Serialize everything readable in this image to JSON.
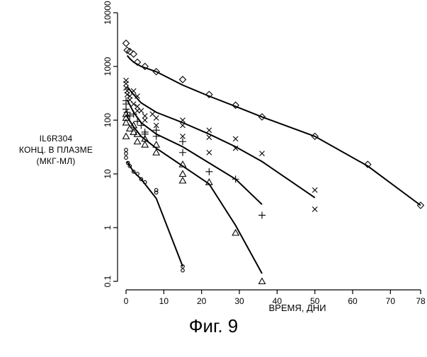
{
  "caption": "Фиг. 9",
  "chart_data": {
    "type": "scatter",
    "title": "",
    "ylabel_lines": [
      "IL6R304",
      "КОНЦ. В ПЛАЗМЕ",
      "(МКГ-МЛ)"
    ],
    "xlabel": "ВРЕМЯ, ДНИ",
    "yscale": "log",
    "ylim": [
      0.1,
      10000
    ],
    "xlim": [
      0,
      78
    ],
    "xticks": [
      0,
      10,
      20,
      30,
      40,
      50,
      60,
      70,
      78
    ],
    "yticks": [
      0.1,
      1,
      10,
      100,
      1000,
      10000
    ],
    "ytick_labels": [
      "0.1",
      "1",
      "10",
      "100",
      "1000",
      "10000"
    ],
    "grid": false,
    "legend": "none",
    "series": [
      {
        "marker": "diamond",
        "points": [
          [
            0,
            2700
          ],
          [
            0.3,
            2000
          ],
          [
            1,
            1900
          ],
          [
            2,
            1700
          ],
          [
            3,
            1200
          ],
          [
            5,
            1000
          ],
          [
            8,
            800
          ],
          [
            15,
            570
          ],
          [
            22,
            300
          ],
          [
            29,
            190
          ],
          [
            36,
            115
          ],
          [
            50,
            50
          ],
          [
            64,
            15
          ],
          [
            78,
            2.6
          ]
        ],
        "fit": [
          [
            0.3,
            1600
          ],
          [
            1,
            1400
          ],
          [
            2,
            1200
          ],
          [
            4,
            1000
          ],
          [
            8,
            800
          ],
          [
            15,
            450
          ],
          [
            22,
            280
          ],
          [
            29,
            180
          ],
          [
            36,
            115
          ],
          [
            50,
            50
          ],
          [
            64,
            14
          ],
          [
            78,
            2.6
          ]
        ]
      },
      {
        "marker": "x",
        "points": [
          [
            0,
            550
          ],
          [
            0,
            480
          ],
          [
            0,
            400
          ],
          [
            0.3,
            350
          ],
          [
            0.3,
            300
          ],
          [
            1,
            280
          ],
          [
            1,
            240
          ],
          [
            2,
            350
          ],
          [
            2,
            200
          ],
          [
            3,
            280
          ],
          [
            3,
            180
          ],
          [
            3,
            150
          ],
          [
            4,
            150
          ],
          [
            5,
            120
          ],
          [
            5,
            100
          ],
          [
            7,
            130
          ],
          [
            8,
            110
          ],
          [
            8,
            80
          ],
          [
            15,
            100
          ],
          [
            15,
            80
          ],
          [
            15,
            50
          ],
          [
            22,
            65
          ],
          [
            22,
            48
          ],
          [
            22,
            25
          ],
          [
            29,
            45
          ],
          [
            29,
            30
          ],
          [
            36,
            24
          ],
          [
            50,
            5
          ],
          [
            50,
            2.2
          ]
        ],
        "fit": [
          [
            0.3,
            420
          ],
          [
            2,
            300
          ],
          [
            4,
            210
          ],
          [
            8,
            140
          ],
          [
            15,
            90
          ],
          [
            22,
            55
          ],
          [
            29,
            32
          ],
          [
            36,
            17
          ],
          [
            50,
            3.6
          ]
        ]
      },
      {
        "marker": "plus",
        "points": [
          [
            0,
            230
          ],
          [
            0,
            200
          ],
          [
            0,
            160
          ],
          [
            0.3,
            140
          ],
          [
            1,
            120
          ],
          [
            2,
            130
          ],
          [
            3,
            95
          ],
          [
            4,
            80
          ],
          [
            5,
            60
          ],
          [
            5,
            55
          ],
          [
            8,
            65
          ],
          [
            8,
            50
          ],
          [
            15,
            40
          ],
          [
            15,
            25
          ],
          [
            22,
            11
          ],
          [
            29,
            8
          ],
          [
            36,
            1.7
          ]
        ],
        "fit": [
          [
            0.3,
            240
          ],
          [
            2,
            140
          ],
          [
            4,
            90
          ],
          [
            8,
            55
          ],
          [
            15,
            32
          ],
          [
            22,
            16
          ],
          [
            29,
            8
          ],
          [
            36,
            2.7
          ]
        ]
      },
      {
        "marker": "triangle",
        "points": [
          [
            0,
            130
          ],
          [
            0,
            110
          ],
          [
            0,
            90
          ],
          [
            0,
            50
          ],
          [
            1,
            70
          ],
          [
            2,
            80
          ],
          [
            2,
            60
          ],
          [
            3,
            55
          ],
          [
            3,
            40
          ],
          [
            5,
            45
          ],
          [
            5,
            35
          ],
          [
            8,
            35
          ],
          [
            8,
            25
          ],
          [
            15,
            15
          ],
          [
            15,
            10
          ],
          [
            15,
            7.5
          ],
          [
            22,
            7
          ],
          [
            29,
            0.8
          ],
          [
            36,
            0.1
          ]
        ],
        "fit": [
          [
            0.3,
            115
          ],
          [
            2,
            75
          ],
          [
            4,
            50
          ],
          [
            8,
            30
          ],
          [
            15,
            14
          ],
          [
            22,
            6.5
          ],
          [
            29,
            1.1
          ],
          [
            36,
            0.14
          ]
        ]
      },
      {
        "marker": "circle",
        "points": [
          [
            0,
            28
          ],
          [
            0,
            24
          ],
          [
            0,
            20
          ],
          [
            0.5,
            16
          ],
          [
            1,
            14
          ],
          [
            2,
            11
          ],
          [
            3,
            10
          ],
          [
            4,
            8
          ],
          [
            5,
            7
          ],
          [
            8,
            5
          ],
          [
            8,
            4.5
          ],
          [
            15,
            0.19
          ],
          [
            15,
            0.16
          ]
        ],
        "fit": [
          [
            0.3,
            17
          ],
          [
            1,
            14
          ],
          [
            2,
            11
          ],
          [
            4,
            8
          ],
          [
            5,
            6.5
          ],
          [
            8,
            3.5
          ],
          [
            15,
            0.19
          ]
        ]
      }
    ]
  }
}
